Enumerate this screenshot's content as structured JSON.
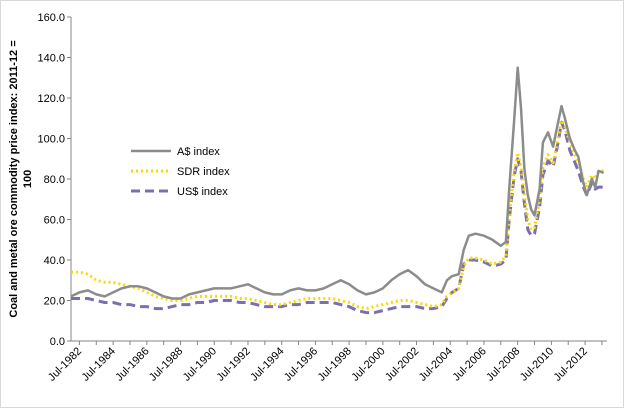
{
  "chart_data": {
    "type": "line",
    "title": "",
    "xlabel": "",
    "ylabel_lines": [
      "Coal and  metal ore commodity price index: 2011-12 =",
      "100"
    ],
    "ylim": [
      0,
      160
    ],
    "y_ticks": [
      0,
      20,
      40,
      60,
      80,
      100,
      120,
      140,
      160
    ],
    "y_tick_labels": [
      "0.0",
      "20.0",
      "40.0",
      "60.0",
      "80.0",
      "100.0",
      "120.0",
      "140.0",
      "160.0"
    ],
    "xlim": [
      1982.0,
      2013.8
    ],
    "x_ticks": [
      1982.5,
      1984.5,
      1986.5,
      1988.5,
      1990.5,
      1992.5,
      1994.5,
      1996.5,
      1998.5,
      2000.5,
      2002.5,
      2004.5,
      2006.5,
      2008.5,
      2010.5,
      2012.5
    ],
    "x_tick_labels": [
      "Jul-1982",
      "Jul-1984",
      "Jul-1986",
      "Jul-1988",
      "Jul-1990",
      "Jul-1992",
      "Jul-1994",
      "Jul-1996",
      "Jul-1998",
      "Jul-2000",
      "Jul-2002",
      "Jul-2004",
      "Jul-2006",
      "Jul-2008",
      "Jul-2010",
      "Jul-2012"
    ],
    "grid": false,
    "legend_position": "upper-left",
    "series": [
      {
        "name": "A$ index",
        "color": "#8c8c8c",
        "style": "solid",
        "points": [
          [
            1982.0,
            22
          ],
          [
            1982.5,
            24
          ],
          [
            1983.0,
            25
          ],
          [
            1983.5,
            23
          ],
          [
            1984.0,
            22
          ],
          [
            1984.5,
            24
          ],
          [
            1985.0,
            26
          ],
          [
            1985.5,
            27
          ],
          [
            1986.0,
            27
          ],
          [
            1986.5,
            26
          ],
          [
            1987.0,
            24
          ],
          [
            1987.5,
            22
          ],
          [
            1988.0,
            21
          ],
          [
            1988.5,
            21
          ],
          [
            1989.0,
            23
          ],
          [
            1989.5,
            24
          ],
          [
            1990.0,
            25
          ],
          [
            1990.5,
            26
          ],
          [
            1991.0,
            26
          ],
          [
            1991.5,
            26
          ],
          [
            1992.0,
            27
          ],
          [
            1992.5,
            28
          ],
          [
            1993.0,
            26
          ],
          [
            1993.5,
            24
          ],
          [
            1994.0,
            23
          ],
          [
            1994.5,
            23
          ],
          [
            1995.0,
            25
          ],
          [
            1995.5,
            26
          ],
          [
            1996.0,
            25
          ],
          [
            1996.5,
            25
          ],
          [
            1997.0,
            26
          ],
          [
            1997.5,
            28
          ],
          [
            1998.0,
            30
          ],
          [
            1998.5,
            28
          ],
          [
            1999.0,
            25
          ],
          [
            1999.5,
            23
          ],
          [
            2000.0,
            24
          ],
          [
            2000.5,
            26
          ],
          [
            2001.0,
            30
          ],
          [
            2001.5,
            33
          ],
          [
            2002.0,
            35
          ],
          [
            2002.5,
            32
          ],
          [
            2003.0,
            28
          ],
          [
            2003.5,
            26
          ],
          [
            2004.0,
            24
          ],
          [
            2004.3,
            30
          ],
          [
            2004.6,
            32
          ],
          [
            2005.0,
            33
          ],
          [
            2005.3,
            45
          ],
          [
            2005.6,
            52
          ],
          [
            2006.0,
            53
          ],
          [
            2006.5,
            52
          ],
          [
            2007.0,
            50
          ],
          [
            2007.5,
            47
          ],
          [
            2007.8,
            49
          ],
          [
            2008.0,
            75
          ],
          [
            2008.3,
            110
          ],
          [
            2008.5,
            135
          ],
          [
            2008.7,
            115
          ],
          [
            2008.9,
            85
          ],
          [
            2009.1,
            72
          ],
          [
            2009.3,
            65
          ],
          [
            2009.5,
            62
          ],
          [
            2009.8,
            75
          ],
          [
            2010.0,
            98
          ],
          [
            2010.3,
            103
          ],
          [
            2010.6,
            96
          ],
          [
            2010.9,
            108
          ],
          [
            2011.1,
            116
          ],
          [
            2011.3,
            110
          ],
          [
            2011.6,
            100
          ],
          [
            2011.9,
            94
          ],
          [
            2012.1,
            91
          ],
          [
            2012.4,
            78
          ],
          [
            2012.6,
            72
          ],
          [
            2012.9,
            80
          ],
          [
            2013.1,
            76
          ],
          [
            2013.3,
            84
          ],
          [
            2013.6,
            83
          ]
        ]
      },
      {
        "name": "SDR index",
        "color": "#ffd700",
        "style": "dotted",
        "points": [
          [
            1982.0,
            34
          ],
          [
            1982.5,
            34
          ],
          [
            1983.0,
            33
          ],
          [
            1983.5,
            30
          ],
          [
            1984.0,
            29
          ],
          [
            1984.5,
            29
          ],
          [
            1985.0,
            28
          ],
          [
            1985.5,
            27
          ],
          [
            1986.0,
            26
          ],
          [
            1986.5,
            24
          ],
          [
            1987.0,
            22
          ],
          [
            1987.5,
            21
          ],
          [
            1988.0,
            20
          ],
          [
            1988.5,
            20
          ],
          [
            1989.0,
            21
          ],
          [
            1989.5,
            22
          ],
          [
            1990.0,
            22
          ],
          [
            1990.5,
            22
          ],
          [
            1991.0,
            22
          ],
          [
            1991.5,
            22
          ],
          [
            1992.0,
            21
          ],
          [
            1992.5,
            21
          ],
          [
            1993.0,
            20
          ],
          [
            1993.5,
            19
          ],
          [
            1994.0,
            18
          ],
          [
            1994.5,
            18
          ],
          [
            1995.0,
            19
          ],
          [
            1995.5,
            20
          ],
          [
            1996.0,
            21
          ],
          [
            1996.5,
            21
          ],
          [
            1997.0,
            21
          ],
          [
            1997.5,
            21
          ],
          [
            1998.0,
            20
          ],
          [
            1998.5,
            19
          ],
          [
            1999.0,
            17
          ],
          [
            1999.5,
            16
          ],
          [
            2000.0,
            17
          ],
          [
            2000.5,
            18
          ],
          [
            2001.0,
            19
          ],
          [
            2001.5,
            20
          ],
          [
            2002.0,
            20
          ],
          [
            2002.5,
            19
          ],
          [
            2003.0,
            18
          ],
          [
            2003.5,
            17
          ],
          [
            2004.0,
            18
          ],
          [
            2004.3,
            22
          ],
          [
            2004.6,
            24
          ],
          [
            2005.0,
            26
          ],
          [
            2005.3,
            37
          ],
          [
            2005.6,
            41
          ],
          [
            2006.0,
            41
          ],
          [
            2006.5,
            40
          ],
          [
            2007.0,
            38
          ],
          [
            2007.5,
            39
          ],
          [
            2007.8,
            42
          ],
          [
            2008.0,
            62
          ],
          [
            2008.3,
            84
          ],
          [
            2008.5,
            93
          ],
          [
            2008.7,
            86
          ],
          [
            2008.9,
            72
          ],
          [
            2009.1,
            60
          ],
          [
            2009.3,
            55
          ],
          [
            2009.5,
            56
          ],
          [
            2009.8,
            70
          ],
          [
            2010.0,
            86
          ],
          [
            2010.3,
            92
          ],
          [
            2010.6,
            88
          ],
          [
            2010.9,
            100
          ],
          [
            2011.1,
            109
          ],
          [
            2011.3,
            106
          ],
          [
            2011.6,
            98
          ],
          [
            2011.9,
            92
          ],
          [
            2012.1,
            88
          ],
          [
            2012.4,
            80
          ],
          [
            2012.6,
            76
          ],
          [
            2012.9,
            82
          ],
          [
            2013.1,
            80
          ],
          [
            2013.3,
            84
          ],
          [
            2013.6,
            84
          ]
        ]
      },
      {
        "name": "US$ index",
        "color": "#7a70b0",
        "style": "dashed",
        "points": [
          [
            1982.0,
            21
          ],
          [
            1982.5,
            21
          ],
          [
            1983.0,
            21
          ],
          [
            1983.5,
            20
          ],
          [
            1984.0,
            19
          ],
          [
            1984.5,
            19
          ],
          [
            1985.0,
            18
          ],
          [
            1985.5,
            18
          ],
          [
            1986.0,
            17
          ],
          [
            1986.5,
            17
          ],
          [
            1987.0,
            16
          ],
          [
            1987.5,
            16
          ],
          [
            1988.0,
            17
          ],
          [
            1988.5,
            18
          ],
          [
            1989.0,
            18
          ],
          [
            1989.5,
            19
          ],
          [
            1990.0,
            19
          ],
          [
            1990.5,
            20
          ],
          [
            1991.0,
            20
          ],
          [
            1991.5,
            20
          ],
          [
            1992.0,
            19
          ],
          [
            1992.5,
            19
          ],
          [
            1993.0,
            18
          ],
          [
            1993.5,
            17
          ],
          [
            1994.0,
            17
          ],
          [
            1994.5,
            17
          ],
          [
            1995.0,
            18
          ],
          [
            1995.5,
            18
          ],
          [
            1996.0,
            19
          ],
          [
            1996.5,
            19
          ],
          [
            1997.0,
            19
          ],
          [
            1997.5,
            19
          ],
          [
            1998.0,
            18
          ],
          [
            1998.5,
            17
          ],
          [
            1999.0,
            15
          ],
          [
            1999.5,
            14
          ],
          [
            2000.0,
            14
          ],
          [
            2000.5,
            15
          ],
          [
            2001.0,
            16
          ],
          [
            2001.5,
            17
          ],
          [
            2002.0,
            17
          ],
          [
            2002.5,
            17
          ],
          [
            2003.0,
            16
          ],
          [
            2003.5,
            16
          ],
          [
            2004.0,
            17
          ],
          [
            2004.3,
            21
          ],
          [
            2004.6,
            24
          ],
          [
            2005.0,
            26
          ],
          [
            2005.3,
            38
          ],
          [
            2005.6,
            40
          ],
          [
            2006.0,
            40
          ],
          [
            2006.5,
            39
          ],
          [
            2007.0,
            37
          ],
          [
            2007.5,
            38
          ],
          [
            2007.8,
            40
          ],
          [
            2008.0,
            60
          ],
          [
            2008.3,
            82
          ],
          [
            2008.5,
            90
          ],
          [
            2008.7,
            84
          ],
          [
            2008.9,
            68
          ],
          [
            2009.1,
            55
          ],
          [
            2009.3,
            52
          ],
          [
            2009.5,
            53
          ],
          [
            2009.8,
            66
          ],
          [
            2010.0,
            82
          ],
          [
            2010.3,
            89
          ],
          [
            2010.6,
            86
          ],
          [
            2010.9,
            98
          ],
          [
            2011.1,
            108
          ],
          [
            2011.3,
            104
          ],
          [
            2011.6,
            94
          ],
          [
            2011.9,
            88
          ],
          [
            2012.1,
            84
          ],
          [
            2012.4,
            76
          ],
          [
            2012.6,
            72
          ],
          [
            2012.9,
            78
          ],
          [
            2013.1,
            75
          ],
          [
            2013.3,
            76
          ],
          [
            2013.6,
            76
          ]
        ]
      }
    ]
  }
}
